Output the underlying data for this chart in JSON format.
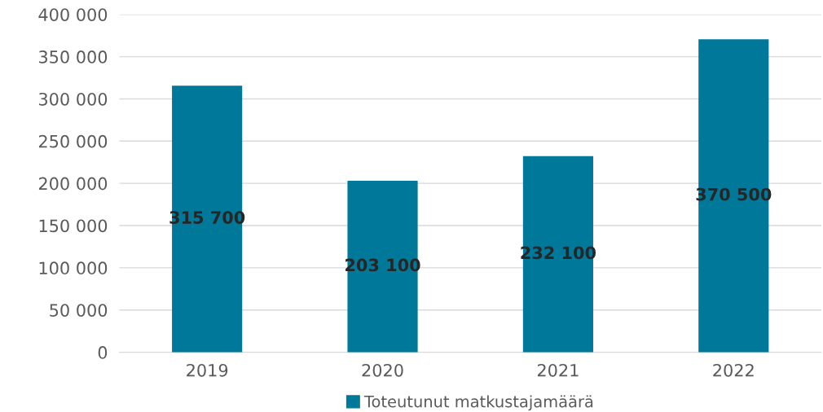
{
  "chart_data": {
    "type": "bar",
    "categories": [
      "2019",
      "2020",
      "2021",
      "2022"
    ],
    "series": [
      {
        "name": "Toteutunut matkustajamäärä",
        "color": "#00789a",
        "values": [
          315700,
          203100,
          232100,
          370500
        ],
        "value_labels": [
          "315 700",
          "203 100",
          "232 100",
          "370 500"
        ]
      }
    ],
    "ylim": [
      0,
      400000
    ],
    "yticks": [
      {
        "value": 0,
        "label": "0"
      },
      {
        "value": 50000,
        "label": "50 000"
      },
      {
        "value": 100000,
        "label": "100 000"
      },
      {
        "value": 150000,
        "label": "150 000"
      },
      {
        "value": 200000,
        "label": "200 000"
      },
      {
        "value": 250000,
        "label": "250 000"
      },
      {
        "value": 300000,
        "label": "300 000"
      },
      {
        "value": 350000,
        "label": "350 000"
      },
      {
        "value": 400000,
        "label": "400 000"
      }
    ],
    "grid": "y",
    "legend": "bottom"
  }
}
